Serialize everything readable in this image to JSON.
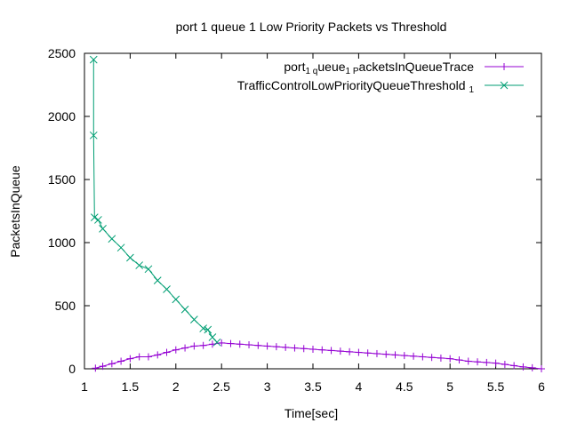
{
  "chart_data": {
    "type": "line",
    "title": "port 1 queue 1 Low Priority Packets vs Threshold",
    "xlabel": "Time[sec]",
    "ylabel": "PacketsInQueue",
    "xlim": [
      1,
      6
    ],
    "ylim": [
      0,
      2500
    ],
    "xticks": [
      1,
      1.5,
      2,
      2.5,
      3,
      3.5,
      4,
      4.5,
      5,
      5.5,
      6
    ],
    "xtick_labels": [
      "1",
      "1.5",
      "2",
      "2.5",
      "3",
      "3.5",
      "4",
      "4.5",
      "5",
      "5.5",
      "6"
    ],
    "yticks": [
      0,
      500,
      1000,
      1500,
      2000,
      2500
    ],
    "ytick_labels": [
      "0",
      "500",
      "1000",
      "1500",
      "2000",
      "2500"
    ],
    "grid": false,
    "legend_position": "top-right",
    "series": [
      {
        "name_parts": [
          {
            "text": "port",
            "sub": false
          },
          {
            "text": "1 q",
            "sub": true
          },
          {
            "text": "ueue",
            "sub": false
          },
          {
            "text": "1 P",
            "sub": true
          },
          {
            "text": "acketsInQueueTrace",
            "sub": false
          }
        ],
        "color": "#9400d3",
        "marker": "plus",
        "x": [
          1.12,
          1.2,
          1.3,
          1.4,
          1.5,
          1.6,
          1.7,
          1.8,
          1.9,
          2.0,
          2.1,
          2.2,
          2.3,
          2.4,
          2.5,
          2.6,
          2.7,
          2.8,
          2.9,
          3.0,
          3.1,
          3.2,
          3.3,
          3.4,
          3.5,
          3.6,
          3.7,
          3.8,
          3.9,
          4.0,
          4.1,
          4.2,
          4.3,
          4.4,
          4.5,
          4.6,
          4.7,
          4.8,
          4.9,
          5.0,
          5.1,
          5.2,
          5.3,
          5.4,
          5.5,
          5.6,
          5.7,
          5.8,
          5.9,
          6.0
        ],
        "y": [
          5,
          20,
          40,
          60,
          80,
          95,
          95,
          110,
          130,
          150,
          165,
          180,
          185,
          195,
          205,
          200,
          195,
          190,
          185,
          180,
          175,
          170,
          165,
          160,
          155,
          150,
          145,
          140,
          135,
          130,
          125,
          120,
          115,
          110,
          105,
          100,
          95,
          90,
          85,
          80,
          70,
          60,
          55,
          50,
          45,
          35,
          25,
          15,
          8,
          0
        ]
      },
      {
        "name": "TrafficControlLowPriorityQueueThreshold",
        "name_sub": "1",
        "color": "#009e73",
        "marker": "cross",
        "x": [
          1.1,
          1.1,
          1.11,
          1.15,
          1.2,
          1.3,
          1.4,
          1.5,
          1.6,
          1.7,
          1.8,
          1.9,
          2.0,
          2.1,
          2.2,
          2.3,
          2.35,
          2.4,
          2.45
        ],
        "y": [
          2450,
          1850,
          1200,
          1180,
          1110,
          1030,
          960,
          880,
          820,
          790,
          700,
          630,
          550,
          470,
          390,
          320,
          310,
          250,
          210
        ]
      }
    ]
  }
}
